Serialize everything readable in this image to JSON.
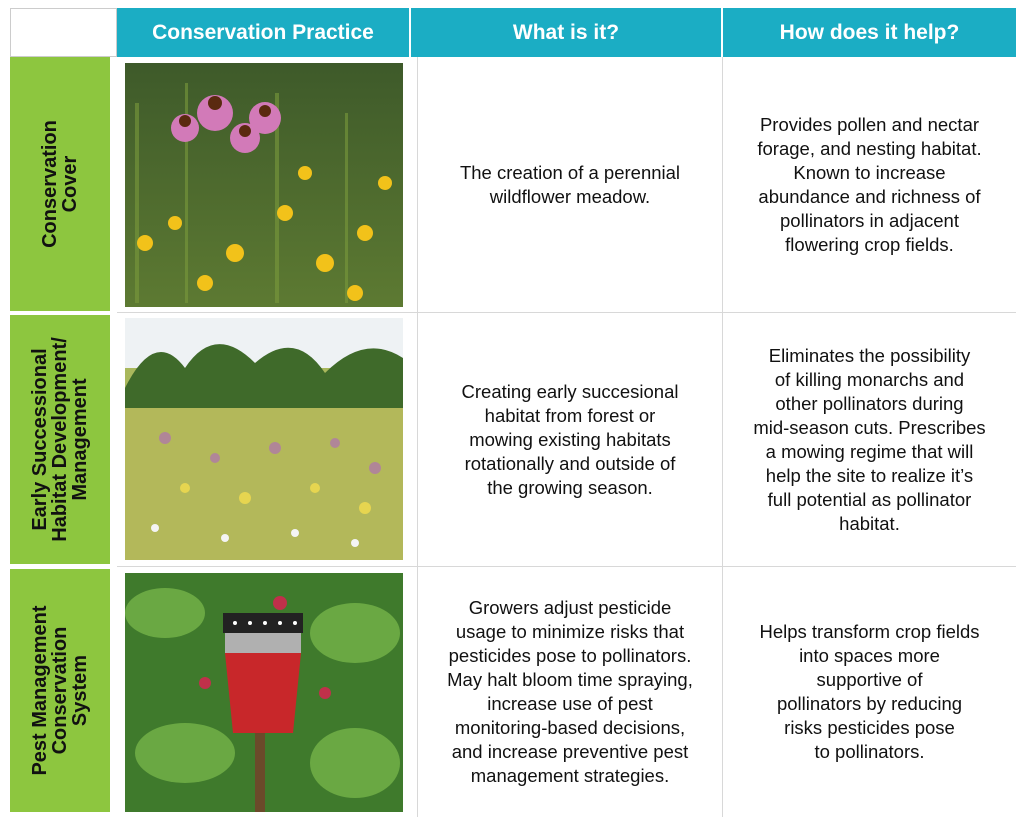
{
  "header": {
    "columns": [
      "Conservation Practice",
      "What is it?",
      "How does it help?"
    ]
  },
  "rows": [
    {
      "label": [
        "Conservation",
        "Cover"
      ],
      "what": [
        "The creation of a perennial",
        "wildflower meadow."
      ],
      "help": [
        "Provides pollen and nectar",
        "forage, and nesting habitat.",
        "Known to increase",
        "abundance and richness of",
        "pollinators in adjacent",
        "flowering crop fields."
      ]
    },
    {
      "label": [
        "Early Successional",
        "Habitat Development/",
        "Management"
      ],
      "what": [
        "Creating early succesional",
        "habitat from forest or",
        "mowing existing habitats",
        "rotationally and outside of",
        "the growing season."
      ],
      "help": [
        "Eliminates the possibility",
        "of killing monarchs and",
        "other pollinators during",
        "mid-season cuts. Prescribes",
        "a mowing regime that will",
        "help the site to realize it’s",
        "full potential as pollinator",
        "habitat."
      ]
    },
    {
      "label": [
        "Pest Management",
        "Conservation",
        "System"
      ],
      "what": [
        "Growers adjust pesticide",
        "usage to minimize risks that",
        "pesticides pose to pollinators.",
        "May halt bloom time spraying,",
        "increase use of pest",
        "monitoring-based decisions,",
        "and increase preventive pest",
        "management strategies."
      ],
      "help": [
        "Helps transform crop fields",
        "into spaces more",
        "supportive of",
        "pollinators by reducing",
        "risks pesticides pose",
        "to pollinators."
      ]
    }
  ]
}
